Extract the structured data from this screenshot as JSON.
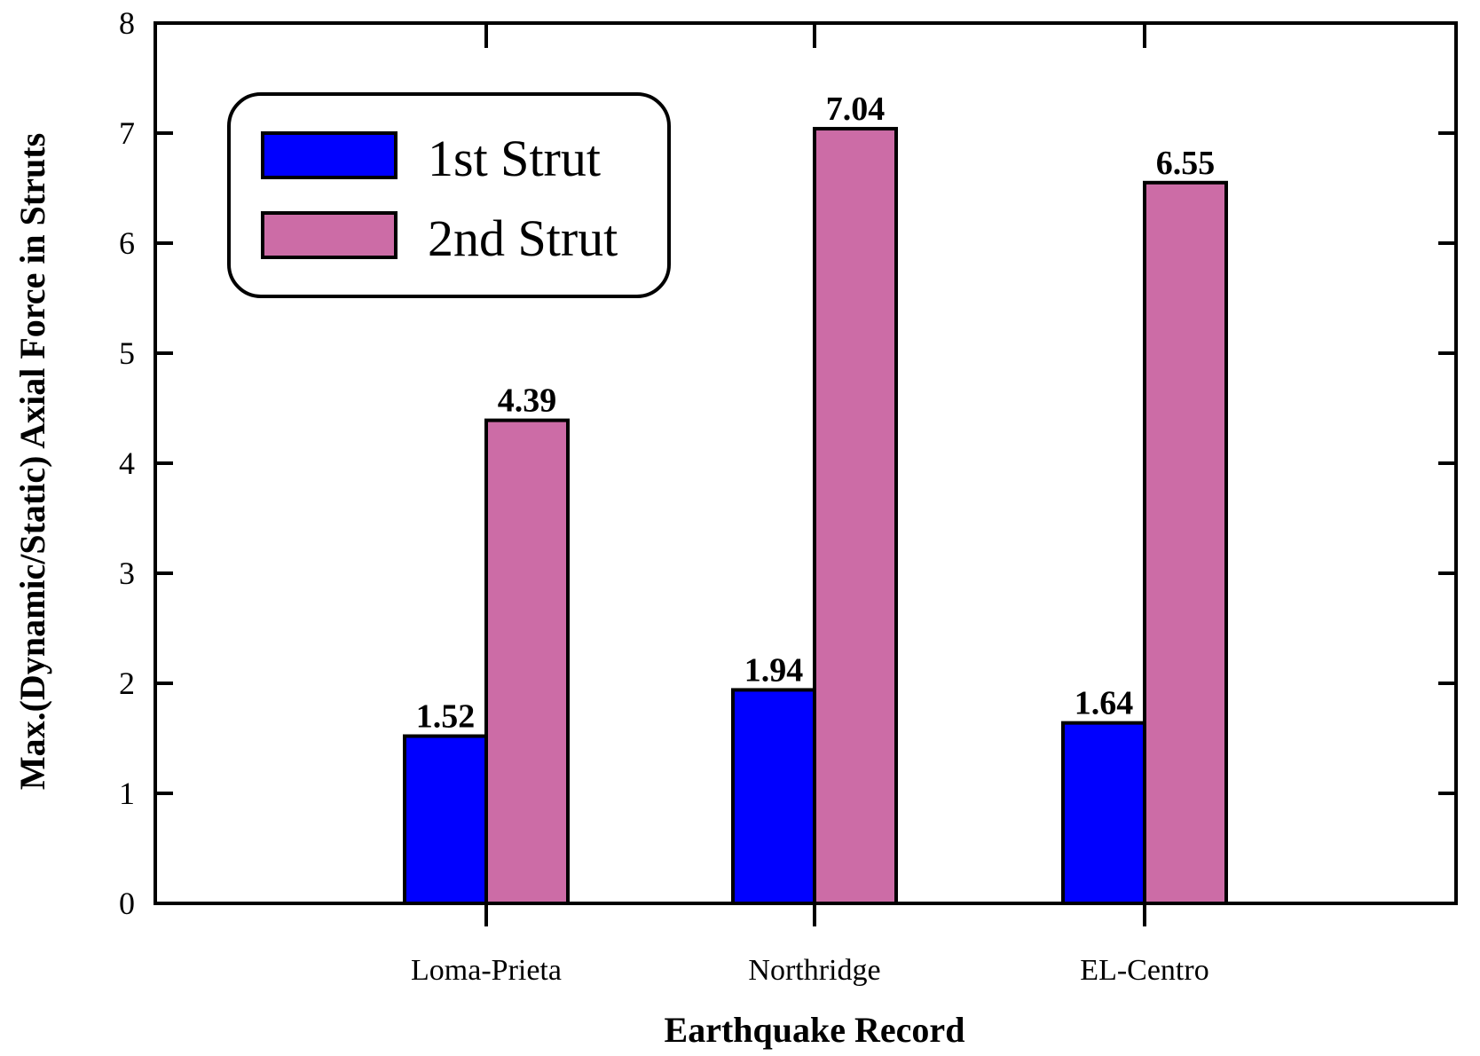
{
  "chart_data": {
    "type": "bar",
    "title": "",
    "xlabel": "Earthquake Record",
    "ylabel": "Max.(Dynamic/Static) Axial Force in Struts",
    "categories": [
      "Loma-Prieta",
      "Northridge",
      "EL-Centro"
    ],
    "series": [
      {
        "name": "1st Strut",
        "color": "#0000ff",
        "values": [
          1.52,
          1.94,
          1.64
        ]
      },
      {
        "name": "2nd Strut",
        "color": "#cc6ca6",
        "values": [
          4.39,
          7.04,
          6.55
        ]
      }
    ],
    "data_labels": [
      [
        "1.52",
        "1.94",
        "1.64"
      ],
      [
        "4.39",
        "7.04",
        "6.55"
      ]
    ],
    "ylim": [
      0,
      8
    ],
    "yticks": [
      "0",
      "1",
      "2",
      "3",
      "4",
      "5",
      "6",
      "7",
      "8"
    ],
    "grid": false,
    "legend_position": "top-left"
  }
}
